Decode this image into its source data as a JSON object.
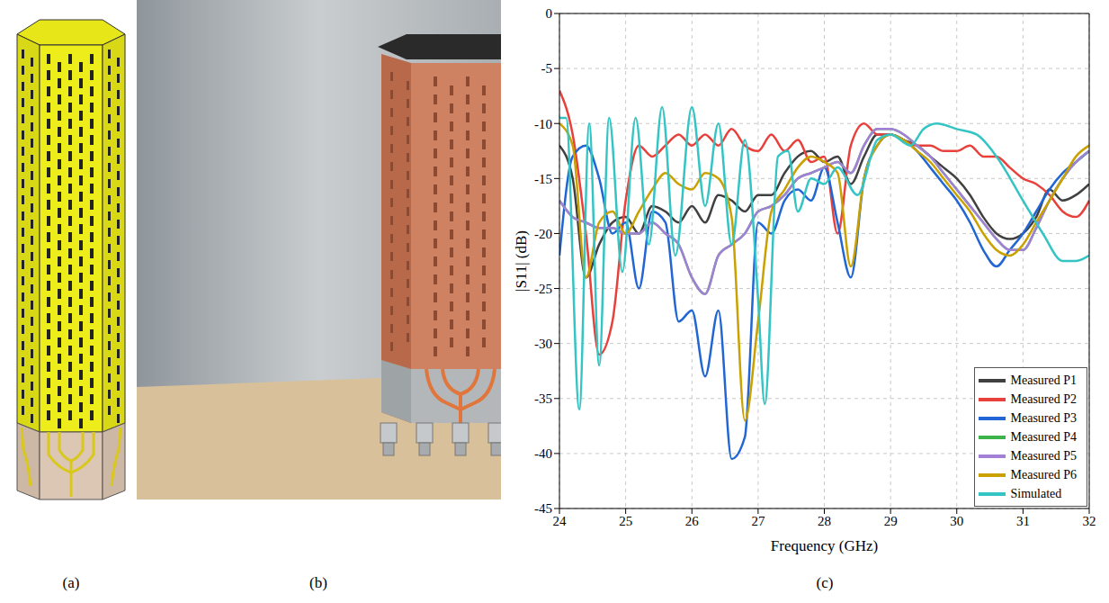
{
  "chart_data": {
    "type": "line",
    "xlabel": "Frequency (GHz)",
    "ylabel": "|S11| (dB)",
    "xlim": [
      24,
      32
    ],
    "ylim": [
      -45,
      0
    ],
    "xticks": [
      24,
      25,
      26,
      27,
      28,
      29,
      30,
      31,
      32
    ],
    "yticks": [
      -45,
      -40,
      -35,
      -30,
      -25,
      -20,
      -15,
      -10,
      -5,
      0
    ],
    "grid": true,
    "legend": "lower right",
    "series": [
      {
        "name": "Measured P1",
        "color": "#404040",
        "x": [
          24,
          24.2,
          24.4,
          24.6,
          24.8,
          25,
          25.2,
          25.4,
          25.6,
          25.8,
          26,
          26.2,
          26.4,
          26.6,
          26.8,
          27,
          27.2,
          27.4,
          27.6,
          27.8,
          28,
          28.2,
          28.4,
          28.6,
          28.8,
          29,
          29.2,
          29.4,
          29.6,
          29.8,
          30,
          30.2,
          30.4,
          30.6,
          30.8,
          31,
          31.2,
          31.4,
          31.6,
          31.8,
          32
        ],
        "values": [
          -12,
          -15,
          -24,
          -21,
          -19,
          -18.5,
          -20,
          -17.5,
          -18,
          -19,
          -17.5,
          -19,
          -16.5,
          -17,
          -18,
          -16.5,
          -16.5,
          -14.5,
          -13,
          -12.5,
          -13.5,
          -13,
          -15.5,
          -13,
          -11,
          -11,
          -11.5,
          -12,
          -13,
          -14,
          -15,
          -16.5,
          -18.5,
          -20,
          -20.5,
          -20,
          -18.5,
          -16,
          -17,
          -16.5,
          -15.5
        ]
      },
      {
        "name": "Measured P2",
        "color": "#e8413c",
        "x": [
          24,
          24.2,
          24.4,
          24.6,
          24.8,
          25,
          25.2,
          25.4,
          25.6,
          25.8,
          26,
          26.2,
          26.4,
          26.6,
          26.8,
          27,
          27.2,
          27.4,
          27.6,
          27.8,
          28,
          28.2,
          28.4,
          28.6,
          28.8,
          29,
          29.2,
          29.4,
          29.6,
          29.8,
          30,
          30.2,
          30.4,
          30.6,
          30.8,
          31,
          31.2,
          31.4,
          31.6,
          31.8,
          32
        ],
        "values": [
          -7,
          -11,
          -20,
          -31,
          -28,
          -17,
          -12,
          -13,
          -12,
          -11,
          -12,
          -11,
          -12,
          -10.5,
          -12,
          -12.5,
          -11,
          -12.5,
          -11.5,
          -13.5,
          -13,
          -20,
          -12,
          -10,
          -11,
          -11,
          -11.5,
          -12,
          -12,
          -12.5,
          -12.5,
          -12,
          -13,
          -13,
          -14,
          -15,
          -15.5,
          -16.5,
          -18,
          -18.5,
          -17
        ]
      },
      {
        "name": "Measured P3",
        "color": "#2166d4",
        "x": [
          24,
          24.2,
          24.4,
          24.6,
          24.8,
          25,
          25.2,
          25.4,
          25.6,
          25.8,
          26,
          26.2,
          26.4,
          26.6,
          26.8,
          27,
          27.2,
          27.4,
          27.6,
          27.8,
          28,
          28.2,
          28.4,
          28.6,
          28.8,
          29,
          29.2,
          29.4,
          29.6,
          29.8,
          30,
          30.2,
          30.4,
          30.6,
          30.8,
          31,
          31.2,
          31.4,
          31.6,
          31.8,
          32
        ],
        "values": [
          -22,
          -13,
          -12,
          -15,
          -20,
          -19,
          -25,
          -18,
          -19,
          -28,
          -27,
          -33,
          -27,
          -40.5,
          -38.5,
          -19,
          -20,
          -17,
          -16,
          -17,
          -14,
          -19,
          -24,
          -15,
          -12,
          -11,
          -11.5,
          -12.5,
          -14,
          -15.5,
          -17,
          -19,
          -21.5,
          -23,
          -21.5,
          -20,
          -18,
          -16,
          -14.5,
          -13.5,
          -12.5
        ]
      },
      {
        "name": "Measured P4",
        "color": "#3cb44a",
        "x": [
          24,
          24.2,
          24.4,
          24.6,
          24.8,
          25,
          25.2,
          25.4,
          25.6,
          25.8,
          26,
          26.2,
          26.4,
          26.6,
          26.8,
          27,
          27.2,
          27.4,
          27.6,
          27.8,
          28,
          28.2,
          28.4,
          28.6,
          28.8,
          29,
          29.2,
          29.4,
          29.6,
          29.8,
          30,
          30.2,
          30.4,
          30.6,
          30.8,
          31,
          31.2,
          31.4,
          31.6,
          31.8,
          32
        ],
        "values": [
          -17,
          -18.5,
          -19,
          -19.5,
          -19.5,
          -20,
          -20,
          -19,
          -20,
          -21,
          -24,
          -25.5,
          -22,
          -21,
          -20,
          -18,
          -17.5,
          -16.5,
          -15,
          -14.5,
          -14,
          -13.5,
          -14.5,
          -12,
          -10.5,
          -10.5,
          -11,
          -12,
          -13,
          -14.5,
          -16,
          -17.5,
          -19,
          -20.5,
          -21.5,
          -21.5,
          -19.5,
          -17,
          -15,
          -13.5,
          -12.5
        ]
      },
      {
        "name": "Measured P5",
        "color": "#a47fd8",
        "x": [
          24,
          24.2,
          24.4,
          24.6,
          24.8,
          25,
          25.2,
          25.4,
          25.6,
          25.8,
          26,
          26.2,
          26.4,
          26.6,
          26.8,
          27,
          27.2,
          27.4,
          27.6,
          27.8,
          28,
          28.2,
          28.4,
          28.6,
          28.8,
          29,
          29.2,
          29.4,
          29.6,
          29.8,
          30,
          30.2,
          30.4,
          30.6,
          30.8,
          31,
          31.2,
          31.4,
          31.6,
          31.8,
          32
        ],
        "values": [
          -17,
          -18.5,
          -19,
          -19.5,
          -19.5,
          -20,
          -20,
          -19,
          -20,
          -21,
          -24,
          -25.5,
          -22,
          -21,
          -20,
          -18,
          -17.5,
          -16.5,
          -15,
          -14.5,
          -14,
          -13.5,
          -14.5,
          -12,
          -10.5,
          -10.5,
          -11,
          -12,
          -13,
          -14.5,
          -16,
          -17.5,
          -19,
          -20.5,
          -21.5,
          -21.5,
          -19.5,
          -17,
          -15,
          -13.5,
          -12.5
        ]
      },
      {
        "name": "Measured P6",
        "color": "#c9a100",
        "x": [
          24,
          24.2,
          24.4,
          24.6,
          24.8,
          25,
          25.2,
          25.4,
          25.6,
          25.8,
          26,
          26.2,
          26.4,
          26.6,
          26.8,
          27,
          27.2,
          27.4,
          27.6,
          27.8,
          28,
          28.2,
          28.4,
          28.6,
          28.8,
          29,
          29.2,
          29.4,
          29.6,
          29.8,
          30,
          30.2,
          30.4,
          30.6,
          30.8,
          31,
          31.2,
          31.4,
          31.6,
          31.8,
          32
        ],
        "values": [
          -10,
          -12,
          -24,
          -19,
          -18,
          -20,
          -18,
          -16,
          -14.5,
          -15.5,
          -16,
          -14.5,
          -15,
          -18.5,
          -37,
          -28,
          -18,
          -16,
          -14,
          -13,
          -13.5,
          -14.5,
          -23,
          -15,
          -12,
          -11,
          -11.5,
          -12.5,
          -13.5,
          -15,
          -16.5,
          -18,
          -20,
          -21.5,
          -22,
          -21,
          -19,
          -17,
          -15,
          -13,
          -12
        ]
      },
      {
        "name": "Simulated",
        "color": "#35c4c4",
        "x": [
          24,
          24.1,
          24.3,
          24.45,
          24.6,
          24.75,
          24.95,
          25.15,
          25.35,
          25.55,
          25.75,
          26,
          26.2,
          26.4,
          26.6,
          26.8,
          27,
          27.1,
          27.3,
          27.45,
          27.6,
          27.8,
          28,
          28.2,
          28.5,
          28.8,
          29,
          29.3,
          29.5,
          29.7,
          30,
          30.3,
          30.6,
          31,
          31.3,
          31.6,
          31.8,
          32
        ],
        "values": [
          -9.5,
          -9.5,
          -36,
          -10,
          -32,
          -9.5,
          -23.5,
          -9.5,
          -21,
          -8.5,
          -22,
          -8.5,
          -17.5,
          -10,
          -21,
          -11.5,
          -26,
          -35.5,
          -13,
          -12.5,
          -18,
          -15,
          -15.5,
          -14,
          -16.5,
          -11.5,
          -11,
          -12,
          -10.5,
          -10,
          -10.5,
          -11,
          -13,
          -17,
          -20,
          -22.5,
          -22.5,
          -22
        ]
      }
    ]
  },
  "panel_labels": [
    "(a)",
    "(b)",
    "(c)"
  ]
}
